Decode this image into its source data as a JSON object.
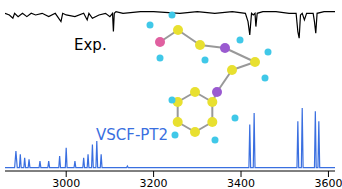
{
  "chart_data": {
    "type": "line",
    "xlim": [
      2860,
      3615
    ],
    "xticks": [
      3000,
      3200,
      3400,
      3600
    ],
    "ylim": [
      0,
      1
    ],
    "tick_labels": "x",
    "grid": false,
    "series": [
      {
        "name": "Exp.",
        "color": "#000000",
        "x": [
          2860,
          2870,
          2878,
          2882,
          2890,
          2900,
          2910,
          2920,
          2930,
          2945,
          2960,
          2975,
          2988,
          2992,
          3000,
          3020,
          3040,
          3048,
          3052,
          3060,
          3075,
          3090,
          3100,
          3106,
          3108,
          3110,
          3114,
          3130,
          3170,
          3200,
          3260,
          3300,
          3340,
          3380,
          3410,
          3416,
          3420,
          3424,
          3428,
          3432,
          3434,
          3437,
          3450,
          3480,
          3510,
          3526,
          3530,
          3533,
          3536,
          3540,
          3545,
          3550,
          3565,
          3568,
          3571,
          3574,
          3590,
          3615
        ],
        "values": [
          0.95,
          0.94,
          0.92,
          0.95,
          0.93,
          0.95,
          0.93,
          0.95,
          0.94,
          0.95,
          0.93,
          0.95,
          0.9,
          0.95,
          0.94,
          0.93,
          0.95,
          0.91,
          0.95,
          0.92,
          0.94,
          0.95,
          0.93,
          0.95,
          0.84,
          0.95,
          0.96,
          0.95,
          0.96,
          0.96,
          0.95,
          0.96,
          0.95,
          0.96,
          0.95,
          0.9,
          0.82,
          0.95,
          0.94,
          0.95,
          0.87,
          0.95,
          0.96,
          0.96,
          0.95,
          0.95,
          0.84,
          0.8,
          0.94,
          0.95,
          0.91,
          0.95,
          0.95,
          0.9,
          0.83,
          0.95,
          0.96,
          0.96
        ]
      },
      {
        "name": "VSCF-PT2",
        "color": "#3a6fe0",
        "x": [
          2860,
          2882,
          2885,
          2888,
          2893,
          2895,
          2897,
          2903,
          2905,
          2907,
          2913,
          2915,
          2917,
          2938,
          2940,
          2942,
          2958,
          2960,
          2962,
          2983,
          2985,
          2987,
          2998,
          3000,
          3002,
          3018,
          3020,
          3022,
          3038,
          3040,
          3042,
          3048,
          3050,
          3052,
          3058,
          3060,
          3062,
          3068,
          3070,
          3072,
          3078,
          3080,
          3082,
          3138,
          3140,
          3142,
          3418,
          3420,
          3422,
          3428,
          3430,
          3432,
          3528,
          3530,
          3532,
          3538,
          3540,
          3542,
          3568,
          3570,
          3572,
          3576,
          3578,
          3580,
          3615
        ],
        "values": [
          0.02,
          0.02,
          0.12,
          0.02,
          0.02,
          0.1,
          0.02,
          0.02,
          0.08,
          0.02,
          0.02,
          0.07,
          0.02,
          0.02,
          0.06,
          0.02,
          0.02,
          0.06,
          0.02,
          0.02,
          0.09,
          0.02,
          0.02,
          0.14,
          0.02,
          0.02,
          0.06,
          0.02,
          0.02,
          0.08,
          0.02,
          0.02,
          0.1,
          0.02,
          0.02,
          0.16,
          0.02,
          0.02,
          0.18,
          0.02,
          0.02,
          0.1,
          0.02,
          0.02,
          0.03,
          0.02,
          0.02,
          0.28,
          0.02,
          0.02,
          0.35,
          0.02,
          0.02,
          0.3,
          0.02,
          0.02,
          0.38,
          0.02,
          0.02,
          0.36,
          0.02,
          0.02,
          0.3,
          0.02,
          0.02
        ]
      }
    ]
  }
}
